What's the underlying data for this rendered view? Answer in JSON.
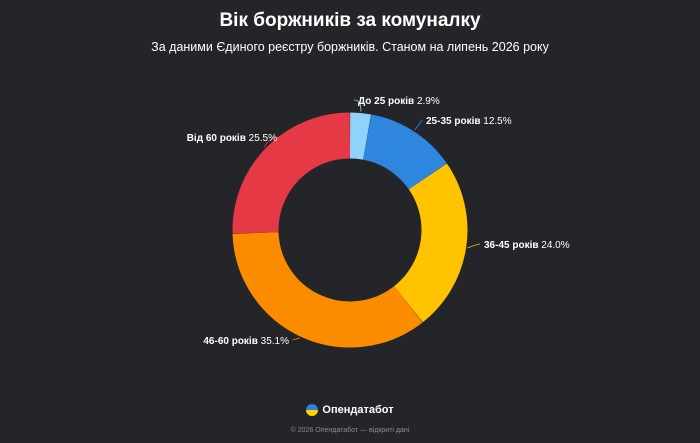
{
  "title": "Вік боржників за комуналку",
  "subtitle": "За даними Єдиного реєстру боржників. Станом на липень 2026 року",
  "brand": {
    "name": "Опендатабот",
    "logo_icon": "ukraine-flag-circle-icon"
  },
  "footer": "© 2026 Опендатабот — відкриті дані",
  "chart_data": {
    "type": "pie",
    "variant": "donut",
    "title": "Вік боржників за комуналку",
    "subtitle": "За даними Єдиного реєстру боржників. Станом на липень 2026 року",
    "unit": "%",
    "categories": [
      "До 25 років",
      "25-35 років",
      "36-45 років",
      "46-60 років",
      "Від 60 років"
    ],
    "values": [
      2.9,
      12.5,
      24.0,
      35.1,
      25.5
    ],
    "value_labels": [
      "2.9%",
      "12.5%",
      "24.0%",
      "35.1%",
      "25.5%"
    ],
    "colors": [
      "#8fd3fb",
      "#2e86de",
      "#ffc300",
      "#fb8c00",
      "#e63946"
    ],
    "legend": "none",
    "labels_position": "outside-with-leader-lines"
  }
}
